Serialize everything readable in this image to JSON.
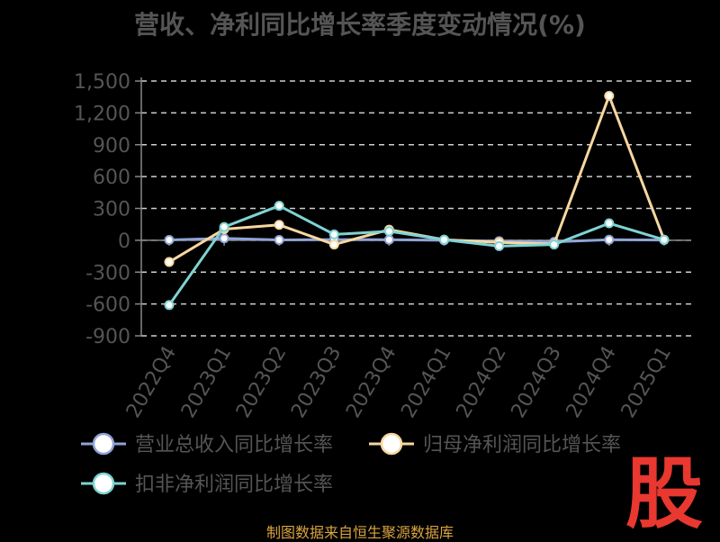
{
  "title": "营收、净利同比增长率季度变动情况(%)",
  "source_note": "制图数据来自恒生聚源数据库",
  "watermark_char": "股",
  "colors": {
    "revenue": "#8fa3d6",
    "net_profit": "#f7d7a0",
    "deducted_profit": "#7fd3d3",
    "grid": "#cfcfcf",
    "axis": "#888888",
    "text": "#555555",
    "logo_red": "#e8382f"
  },
  "chart_data": {
    "type": "line",
    "title": "营收、净利同比增长率季度变动情况(%)",
    "categories": [
      "2022Q4",
      "2023Q1",
      "2023Q2",
      "2023Q3",
      "2023Q4",
      "2024Q1",
      "2024Q2",
      "2024Q3",
      "2024Q4",
      "2025Q1"
    ],
    "y_ticks": [
      "1,500",
      "1,200",
      "900",
      "600",
      "300",
      "0",
      "-300",
      "-600",
      "-900"
    ],
    "ylim": [
      -900,
      1500
    ],
    "grid": true,
    "legend_position": "bottom",
    "series": [
      {
        "name": "营业总收入同比增长率",
        "color_key": "revenue",
        "values": [
          3,
          18,
          3,
          6,
          5,
          0,
          -8,
          -15,
          5,
          2
        ]
      },
      {
        "name": "归母净利润同比增长率",
        "color_key": "net_profit",
        "values": [
          -205,
          105,
          145,
          -40,
          100,
          5,
          -20,
          -35,
          1360,
          5
        ]
      },
      {
        "name": "扣非净利润同比增长率",
        "color_key": "deducted_profit",
        "values": [
          -610,
          125,
          325,
          55,
          85,
          5,
          -55,
          -40,
          160,
          5
        ]
      }
    ]
  }
}
